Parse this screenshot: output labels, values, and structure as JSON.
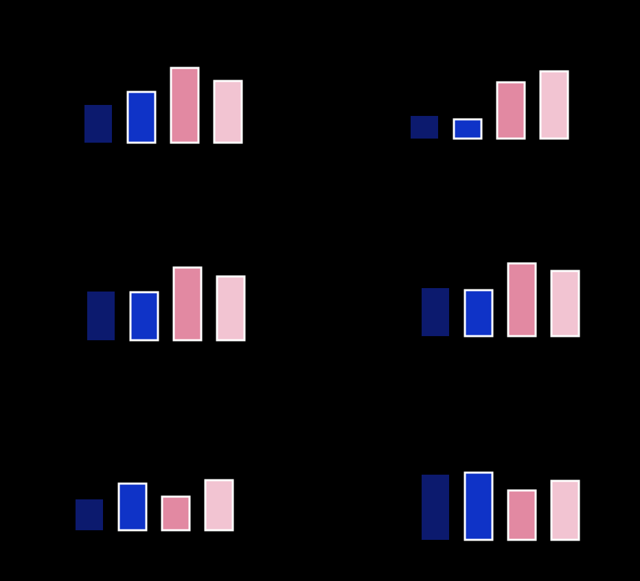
{
  "chart_data": [
    {
      "type": "bar",
      "values": [
        55,
        74,
        109,
        90
      ],
      "colors": [
        "#0c1a6e",
        "#0f33c7",
        "#e289a2",
        "#f2c4d2"
      ],
      "ylim": [
        0,
        120
      ]
    },
    {
      "type": "bar",
      "values": [
        33,
        28,
        82,
        98
      ],
      "colors": [
        "#0c1a6e",
        "#0f33c7",
        "#e289a2",
        "#f2c4d2"
      ],
      "ylim": [
        0,
        120
      ]
    },
    {
      "type": "bar",
      "values": [
        71,
        70,
        106,
        93
      ],
      "colors": [
        "#0c1a6e",
        "#0f33c7",
        "#e289a2",
        "#f2c4d2"
      ],
      "ylim": [
        0,
        120
      ]
    },
    {
      "type": "bar",
      "values": [
        70,
        67,
        106,
        95
      ],
      "colors": [
        "#0c1a6e",
        "#0f33c7",
        "#e289a2",
        "#f2c4d2"
      ],
      "ylim": [
        0,
        120
      ]
    },
    {
      "type": "bar",
      "values": [
        45,
        68,
        49,
        73
      ],
      "colors": [
        "#0c1a6e",
        "#0f33c7",
        "#e289a2",
        "#f2c4d2"
      ],
      "ylim": [
        0,
        120
      ]
    },
    {
      "type": "bar",
      "values": [
        95,
        98,
        72,
        86
      ],
      "colors": [
        "#0c1a6e",
        "#0f33c7",
        "#e289a2",
        "#f2c4d2"
      ],
      "ylim": [
        0,
        120
      ]
    }
  ]
}
